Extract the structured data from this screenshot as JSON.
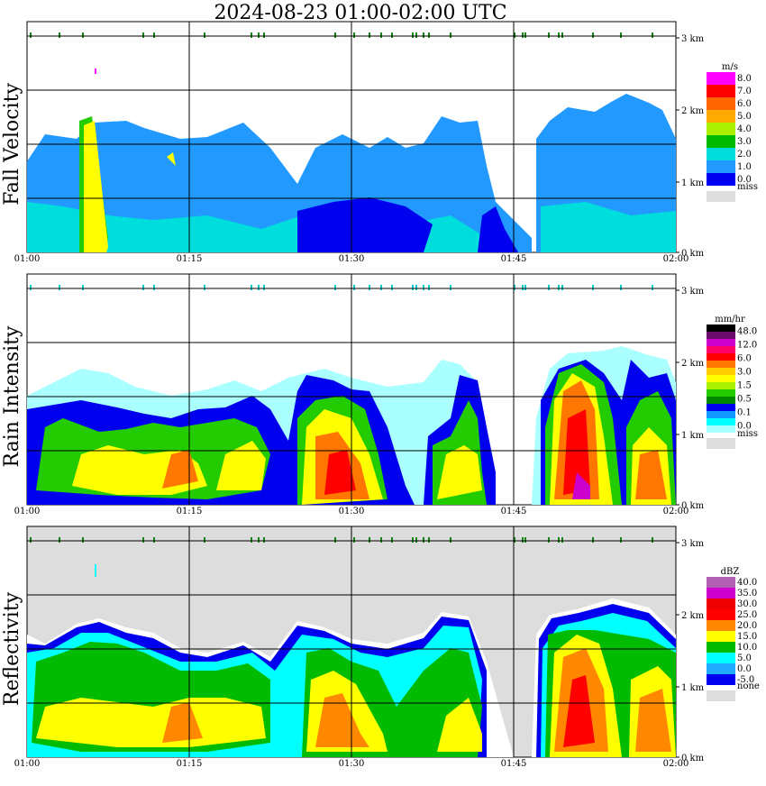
{
  "title": "2024-08-23   01:00-02:00 UTC",
  "time_ticks": [
    "01:00",
    "01:15",
    "01:30",
    "01:45",
    "02:00"
  ],
  "height_ticks": [
    "3 km",
    "2 km",
    "1 km",
    "0 km"
  ],
  "chart_data": [
    {
      "type": "heatmap",
      "title": "Fall Velocity",
      "xlabel": "",
      "ylabel": "Fall Velocity",
      "x_range": [
        "01:00",
        "02:00"
      ],
      "y_range_km": [
        0,
        3.2
      ],
      "grid": true,
      "colorbar": {
        "unit": "m/s",
        "labels": [
          "8.0",
          "7.0",
          "6.0",
          "5.0",
          "4.0",
          "3.0",
          "2.0",
          "1.0",
          "0.0"
        ],
        "colors": [
          "#ff00ff",
          "#ff0000",
          "#ff6600",
          "#ffaa00",
          "#aaee00",
          "#00bb00",
          "#00dddd",
          "#2299ff",
          "#0000ee"
        ],
        "missing_label": "miss",
        "missing_color": "#dddddd"
      },
      "dominant_value_range": [
        1.0,
        2.0
      ],
      "background": "#ffffff"
    },
    {
      "type": "heatmap",
      "title": "Rain Intensity",
      "xlabel": "",
      "ylabel": "Rain Intensity",
      "x_range": [
        "01:00",
        "02:00"
      ],
      "y_range_km": [
        0,
        3.2
      ],
      "grid": true,
      "colorbar": {
        "unit": "mm/hr",
        "labels": [
          "48.0",
          "12.0",
          "6.0",
          "3.0",
          "1.5",
          "0.5",
          "0.1",
          "0.0"
        ],
        "colors": [
          "#000000",
          "#6a0d6a",
          "#cc00cc",
          "#ff0066",
          "#ff0000",
          "#ff7700",
          "#ffcc00",
          "#ffff00",
          "#aaee00",
          "#22cc00",
          "#008800",
          "#0000ee",
          "#1199ff",
          "#00ffff",
          "#aaffff"
        ],
        "missing_label": "miss",
        "missing_color": "#dddddd"
      },
      "background": "#ffffff"
    },
    {
      "type": "heatmap",
      "title": "Reflectivity",
      "xlabel": "",
      "ylabel": "Reflectivity",
      "x_range": [
        "01:00",
        "02:00"
      ],
      "y_range_km": [
        0,
        3.2
      ],
      "grid": true,
      "colorbar": {
        "unit": "dBZ",
        "labels": [
          "40.0",
          "35.0",
          "30.0",
          "25.0",
          "20.0",
          "15.0",
          "10.0",
          "5.0",
          "0.0",
          "-5.0"
        ],
        "colors": [
          "#b060b0",
          "#cc00cc",
          "#ee0000",
          "#ff0000",
          "#ff8800",
          "#ffff00",
          "#00bb00",
          "#00ffff",
          "#22aaff",
          "#0000ee"
        ],
        "missing_label": "none",
        "missing_color": "#dddddd"
      },
      "background": "#dddddd"
    }
  ]
}
